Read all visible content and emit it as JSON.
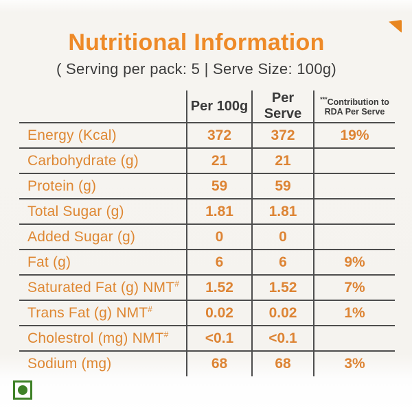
{
  "page": {
    "title": "Nutritional Information",
    "subtitle": "( Serving per pack: 5 | Serve Size: 100g)"
  },
  "table": {
    "headers": {
      "col0": "",
      "col1": "Per 100g",
      "col2": "Per Serve",
      "col3_prefix": "***",
      "col3": "Contribution to RDA Per Serve"
    },
    "rows": [
      {
        "label": "Energy (Kcal)",
        "sup": "",
        "per_100g": "372",
        "per_serve": "372",
        "rda": "19%"
      },
      {
        "label": "Carbohydrate (g)",
        "sup": "",
        "per_100g": "21",
        "per_serve": "21",
        "rda": ""
      },
      {
        "label": "Protein (g)",
        "sup": "",
        "per_100g": "59",
        "per_serve": "59",
        "rda": ""
      },
      {
        "label": "Total Sugar (g)",
        "sup": "",
        "per_100g": "1.81",
        "per_serve": "1.81",
        "rda": ""
      },
      {
        "label": "Added Sugar (g)",
        "sup": "",
        "per_100g": "0",
        "per_serve": "0",
        "rda": ""
      },
      {
        "label": "Fat (g)",
        "sup": "",
        "per_100g": "6",
        "per_serve": "6",
        "rda": "9%"
      },
      {
        "label": "Saturated Fat (g) NMT",
        "sup": "#",
        "per_100g": "1.52",
        "per_serve": "1.52",
        "rda": "7%"
      },
      {
        "label": "Trans Fat (g) NMT",
        "sup": "#",
        "per_100g": "0.02",
        "per_serve": "0.02",
        "rda": "1%"
      },
      {
        "label": "Cholestrol (mg) NMT",
        "sup": "#",
        "per_100g": "<0.1",
        "per_serve": "<0.1",
        "rda": ""
      },
      {
        "label": "Sodium (mg)",
        "sup": "",
        "per_100g": "68",
        "per_serve": "68",
        "rda": "3%"
      }
    ]
  },
  "icons": {
    "veg_mark": "vegetarian-mark",
    "corner": "orange-folded-corner"
  },
  "colors": {
    "accent_orange": "#de8732",
    "title_orange": "#ee8a28",
    "veg_green": "#3e8127",
    "line_gray": "#4d4d4d",
    "text_dark": "#3a3a3a"
  }
}
